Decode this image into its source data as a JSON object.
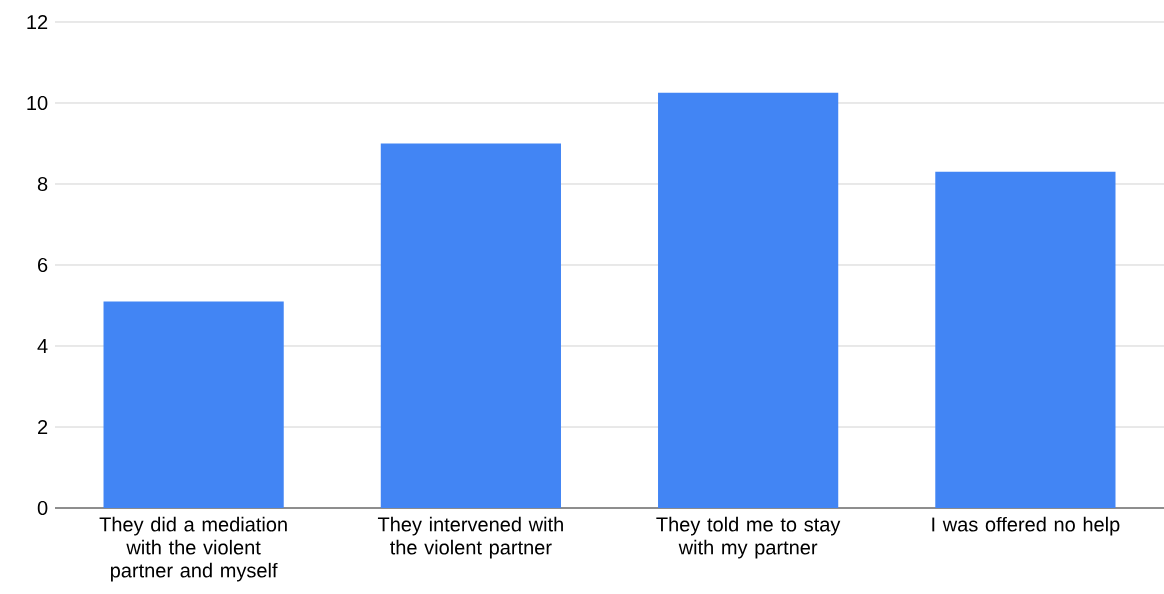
{
  "chart_data": {
    "type": "bar",
    "categories": [
      "They did a mediation with the violent partner and myself",
      "They intervened with the violent partner",
      "They told me to stay with my partner",
      "I was offered no help"
    ],
    "values": [
      5.1,
      9,
      10.25,
      8.3
    ],
    "color": "#4285f4",
    "ylim": [
      0,
      12
    ],
    "yticks": [
      0,
      2,
      4,
      6,
      8,
      10,
      12
    ],
    "grid": "y"
  }
}
